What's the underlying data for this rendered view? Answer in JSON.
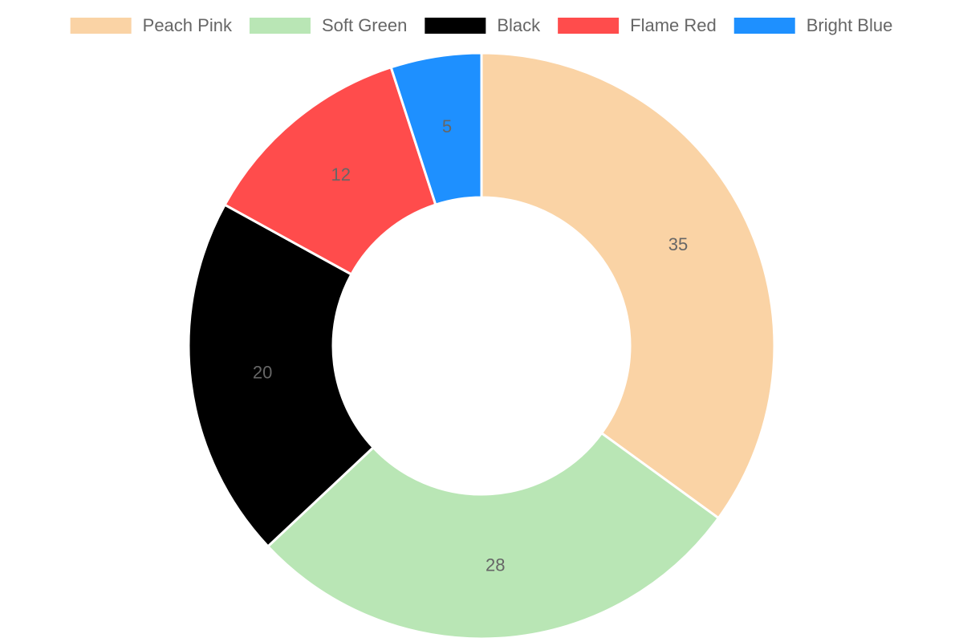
{
  "chart_data": {
    "type": "doughnut",
    "categories": [
      "Peach Pink",
      "Soft Green",
      "Black",
      "Flame Red",
      "Bright Blue"
    ],
    "values": [
      35,
      28,
      20,
      12,
      5
    ],
    "colors": [
      "#fad3a5",
      "#b9e6b5",
      "#000000",
      "#ff4c4c",
      "#1e90ff"
    ],
    "legend": "top"
  }
}
